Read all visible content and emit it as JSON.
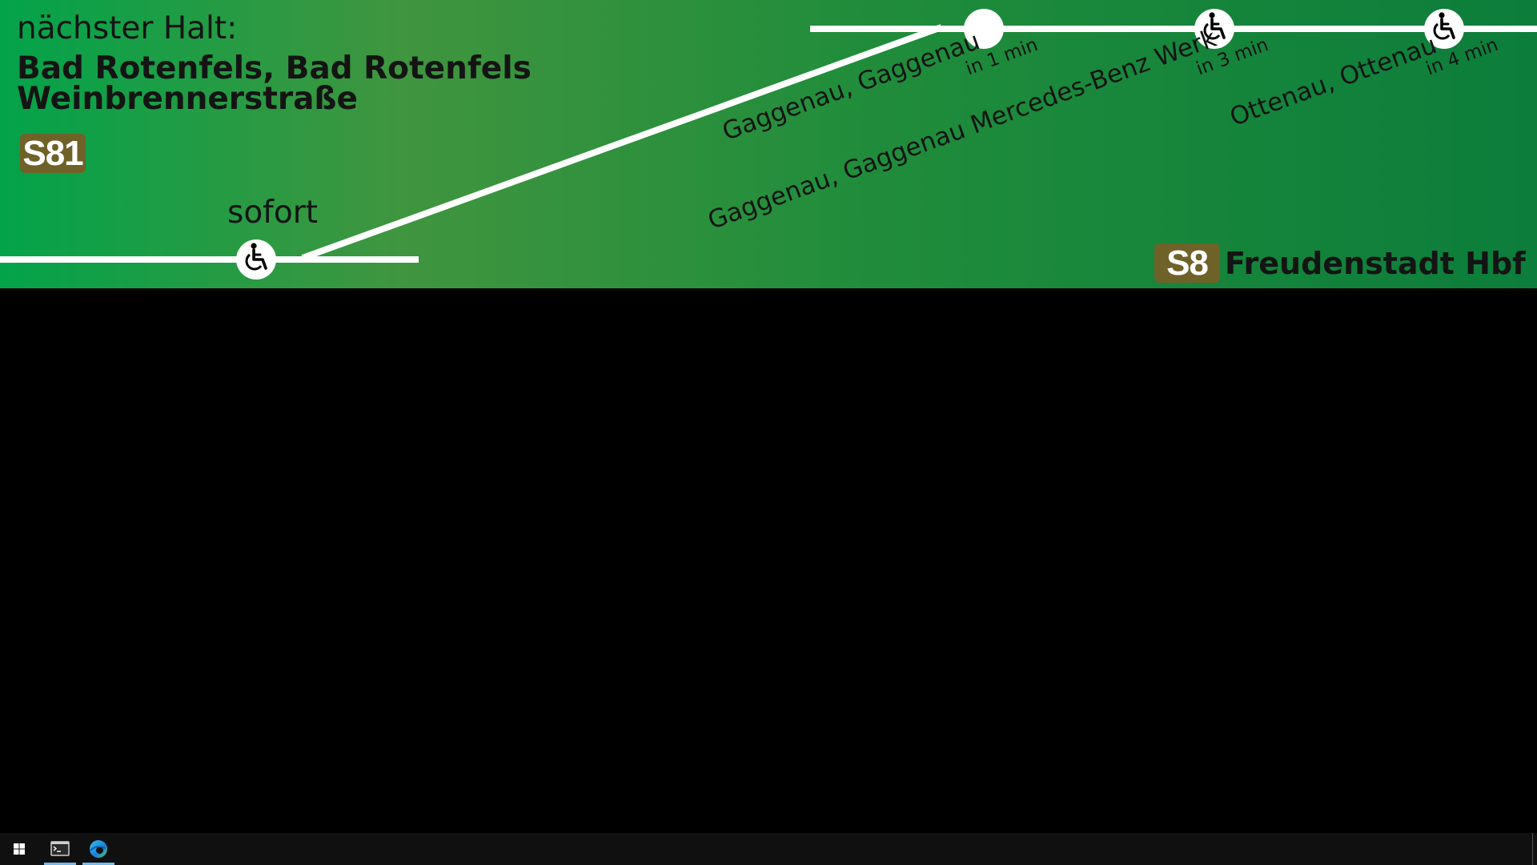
{
  "display": {
    "next_stop_label": "nächster Halt:",
    "next_stop_name_line1": "Bad Rotenfels, Bad Rotenfels",
    "next_stop_name_line2": "Weinbrennerstraße",
    "current_line": "S81",
    "current_time": "sofort",
    "destination_line": "S8",
    "destination_name": "Freudenstadt Hbf",
    "upcoming_stops": [
      {
        "name": "Gaggenau, Gaggenau",
        "time": "in 1 min",
        "accessible": false
      },
      {
        "name": "Gaggenau, Gaggenau Mercedes-Benz Werk",
        "time": "in 3 min",
        "accessible": true
      },
      {
        "name": "Ottenau, Ottenau",
        "time": "in 4 min",
        "accessible": true
      }
    ],
    "current_stop_accessible": true,
    "colors": {
      "background_start": "#03a34a",
      "background_end": "#0c7d3b",
      "line_badge": "#6f6228",
      "route_line": "#ffffff",
      "text": "#141414"
    }
  },
  "taskbar": {
    "items": [
      {
        "icon": "windows-start-icon"
      },
      {
        "icon": "terminal-icon",
        "active": true
      },
      {
        "icon": "edge-browser-icon",
        "active": true
      }
    ]
  }
}
